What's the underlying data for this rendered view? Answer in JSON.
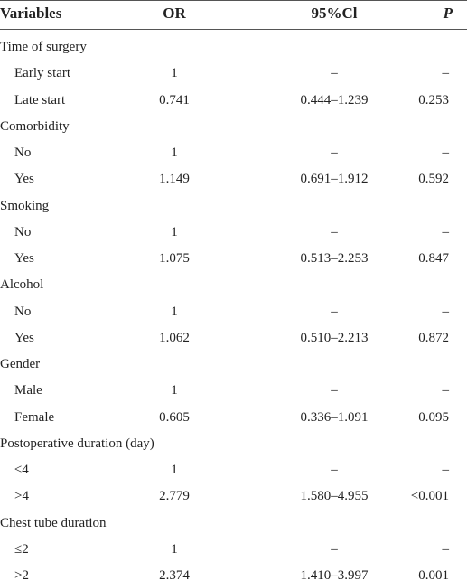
{
  "table": {
    "header": [
      "Variables",
      "OR",
      "95%Cl",
      "P"
    ],
    "rows": [
      [
        "Time of surgery"
      ],
      [
        "Early start",
        "1",
        "–",
        "–"
      ],
      [
        "Late start",
        "0.741",
        "0.444–1.239",
        "0.253"
      ],
      [
        "Comorbidity"
      ],
      [
        "No",
        "1",
        "–",
        "–"
      ],
      [
        "Yes",
        "1.149",
        "0.691–1.912",
        "0.592"
      ],
      [
        "Smoking"
      ],
      [
        "No",
        "1",
        "–",
        "–"
      ],
      [
        "Yes",
        "1.075",
        "0.513–2.253",
        "0.847"
      ],
      [
        "Alcohol"
      ],
      [
        "No",
        "1",
        "–",
        "–"
      ],
      [
        "Yes",
        "1.062",
        "0.510–2.213",
        "0.872"
      ],
      [
        "Gender"
      ],
      [
        "Male",
        "1",
        "–",
        "–"
      ],
      [
        "Female",
        "0.605",
        "0.336–1.091",
        "0.095"
      ],
      [
        "Postoperative duration (day)"
      ],
      [
        "≤4",
        "1",
        "–",
        "–"
      ],
      [
        ">4",
        "2.779",
        "1.580–4.955",
        "<0.001"
      ],
      [
        "Chest tube duration"
      ],
      [
        "≤2",
        "1",
        "–",
        "–"
      ],
      [
        ">2",
        "2.374",
        "1.410–3.997",
        "0.001"
      ]
    ]
  }
}
